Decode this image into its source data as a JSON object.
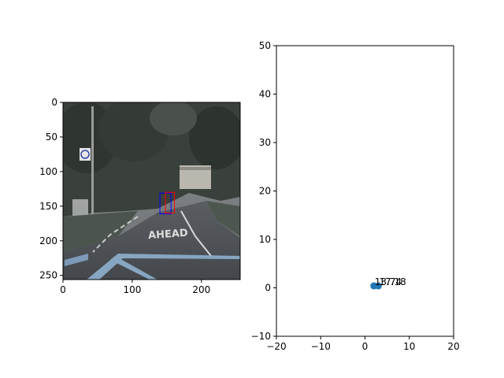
{
  "chart_data": [
    {
      "type": "image",
      "xlim": [
        0,
        256
      ],
      "ylim": [
        256,
        0
      ],
      "x_ticks": [
        0,
        100,
        200
      ],
      "y_ticks": [
        0,
        50,
        100,
        150,
        200,
        250
      ],
      "scene_text": "AHEAD",
      "detection_boxes": [
        {
          "color": "#0000ff",
          "x0": 140,
          "y0": 131,
          "x1": 156,
          "y1": 161
        },
        {
          "color": "#ff0000",
          "x0": 148,
          "y0": 130,
          "x1": 161,
          "y1": 160
        }
      ]
    },
    {
      "type": "scatter",
      "xlim": [
        -20,
        20
      ],
      "ylim": [
        -10,
        50
      ],
      "x_ticks": [
        -20,
        -10,
        0,
        10,
        20
      ],
      "y_ticks": [
        -10,
        0,
        10,
        20,
        30,
        40,
        50
      ],
      "series": [
        {
          "color": "#1f77b4",
          "points": [
            {
              "x": 2.0,
              "y": 0.4,
              "label": "13.74"
            },
            {
              "x": 3.0,
              "y": 0.4,
              "label": "17.18"
            }
          ]
        }
      ]
    }
  ]
}
